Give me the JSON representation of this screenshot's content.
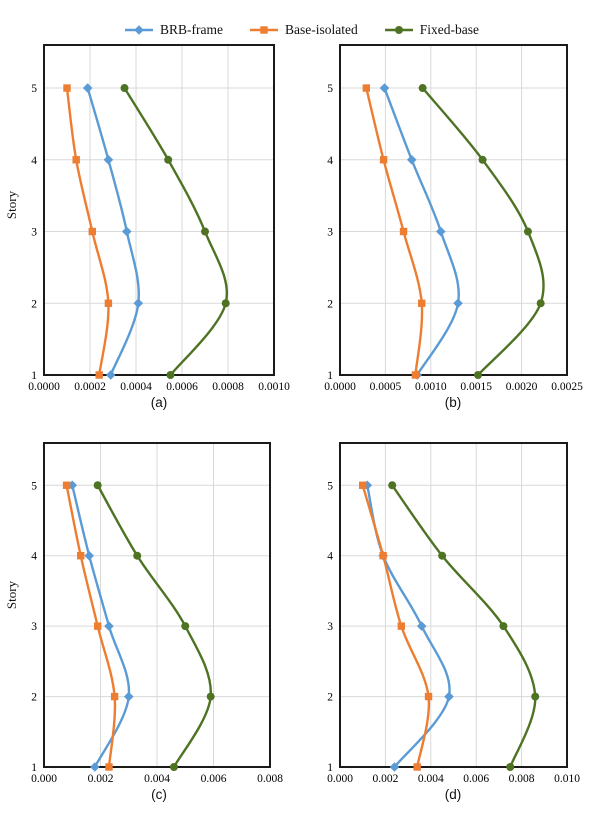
{
  "legend": {
    "items": [
      {
        "label": "BRB-frame",
        "color": "#5B9BD5",
        "marker": "diamond"
      },
      {
        "label": "Base-isolated",
        "color": "#ED7D31",
        "marker": "square"
      },
      {
        "label": "Fixed-base",
        "color": "#4E7323",
        "marker": "circle"
      }
    ]
  },
  "style": {
    "grid_color": "#D9D9D9",
    "frame_color": "#1A1A1A"
  },
  "chart_data": [
    {
      "id": "a",
      "type": "line",
      "title": "(a)",
      "ylabel": "Story",
      "stories": [
        1,
        2,
        3,
        4,
        5
      ],
      "y_tick_labels": [
        "1",
        "2",
        "3",
        "4",
        "5"
      ],
      "xlim": [
        0,
        0.001
      ],
      "ylim": [
        1,
        5.6
      ],
      "grid": true,
      "x_tick_labels": [
        "0.0000",
        "0.0002",
        "0.0004",
        "0.0006",
        "0.0008",
        "0.0010"
      ],
      "series": [
        {
          "name": "BRB-frame",
          "values": [
            0.00029,
            0.00041,
            0.00036,
            0.00028,
            0.00019
          ]
        },
        {
          "name": "Base-isolated",
          "values": [
            0.00024,
            0.00028,
            0.00021,
            0.00014,
            0.0001
          ]
        },
        {
          "name": "Fixed-base",
          "values": [
            0.00055,
            0.00079,
            0.0007,
            0.00054,
            0.00035
          ]
        }
      ]
    },
    {
      "id": "b",
      "type": "line",
      "title": "(b)",
      "ylabel": "",
      "stories": [
        1,
        2,
        3,
        4,
        5
      ],
      "y_tick_labels": [
        "1",
        "2",
        "3",
        "4",
        "5"
      ],
      "xlim": [
        0,
        0.0025
      ],
      "ylim": [
        1,
        5.6
      ],
      "grid": true,
      "x_tick_labels": [
        "0.0000",
        "0.0005",
        "0.0010",
        "0.0015",
        "0.0020",
        "0.0025"
      ],
      "series": [
        {
          "name": "BRB-frame",
          "values": [
            0.00085,
            0.0013,
            0.00111,
            0.00079,
            0.00049
          ]
        },
        {
          "name": "Base-isolated",
          "values": [
            0.00083,
            0.0009,
            0.0007,
            0.00048,
            0.00029
          ]
        },
        {
          "name": "Fixed-base",
          "values": [
            0.00152,
            0.00221,
            0.00207,
            0.00157,
            0.00091
          ]
        }
      ]
    },
    {
      "id": "c",
      "type": "line",
      "title": "(c)",
      "ylabel": "Story",
      "stories": [
        1,
        2,
        3,
        4,
        5
      ],
      "y_tick_labels": [
        "1",
        "2",
        "3",
        "4",
        "5"
      ],
      "xlim": [
        0,
        0.008
      ],
      "ylim": [
        1,
        5.6
      ],
      "grid": true,
      "x_tick_labels": [
        "0.000",
        "0.002",
        "0.004",
        "0.006",
        "0.008"
      ],
      "series": [
        {
          "name": "BRB-frame",
          "values": [
            0.0018,
            0.003,
            0.0023,
            0.0016,
            0.001
          ]
        },
        {
          "name": "Base-isolated",
          "values": [
            0.0023,
            0.0025,
            0.0019,
            0.0013,
            0.0008
          ]
        },
        {
          "name": "Fixed-base",
          "values": [
            0.0046,
            0.0059,
            0.005,
            0.0033,
            0.0019
          ]
        }
      ]
    },
    {
      "id": "d",
      "type": "line",
      "title": "(d)",
      "ylabel": "",
      "stories": [
        1,
        2,
        3,
        4,
        5
      ],
      "y_tick_labels": [
        "1",
        "2",
        "3",
        "4",
        "5"
      ],
      "xlim": [
        0,
        0.01
      ],
      "ylim": [
        1,
        5.6
      ],
      "grid": true,
      "x_tick_labels": [
        "0.000",
        "0.002",
        "0.004",
        "0.006",
        "0.008",
        "0.010"
      ],
      "series": [
        {
          "name": "BRB-frame",
          "values": [
            0.0024,
            0.0048,
            0.0036,
            0.0019,
            0.0012
          ]
        },
        {
          "name": "Base-isolated",
          "values": [
            0.0034,
            0.0039,
            0.0027,
            0.0019,
            0.001
          ]
        },
        {
          "name": "Fixed-base",
          "values": [
            0.0075,
            0.0086,
            0.0072,
            0.0045,
            0.0023
          ]
        }
      ]
    }
  ]
}
